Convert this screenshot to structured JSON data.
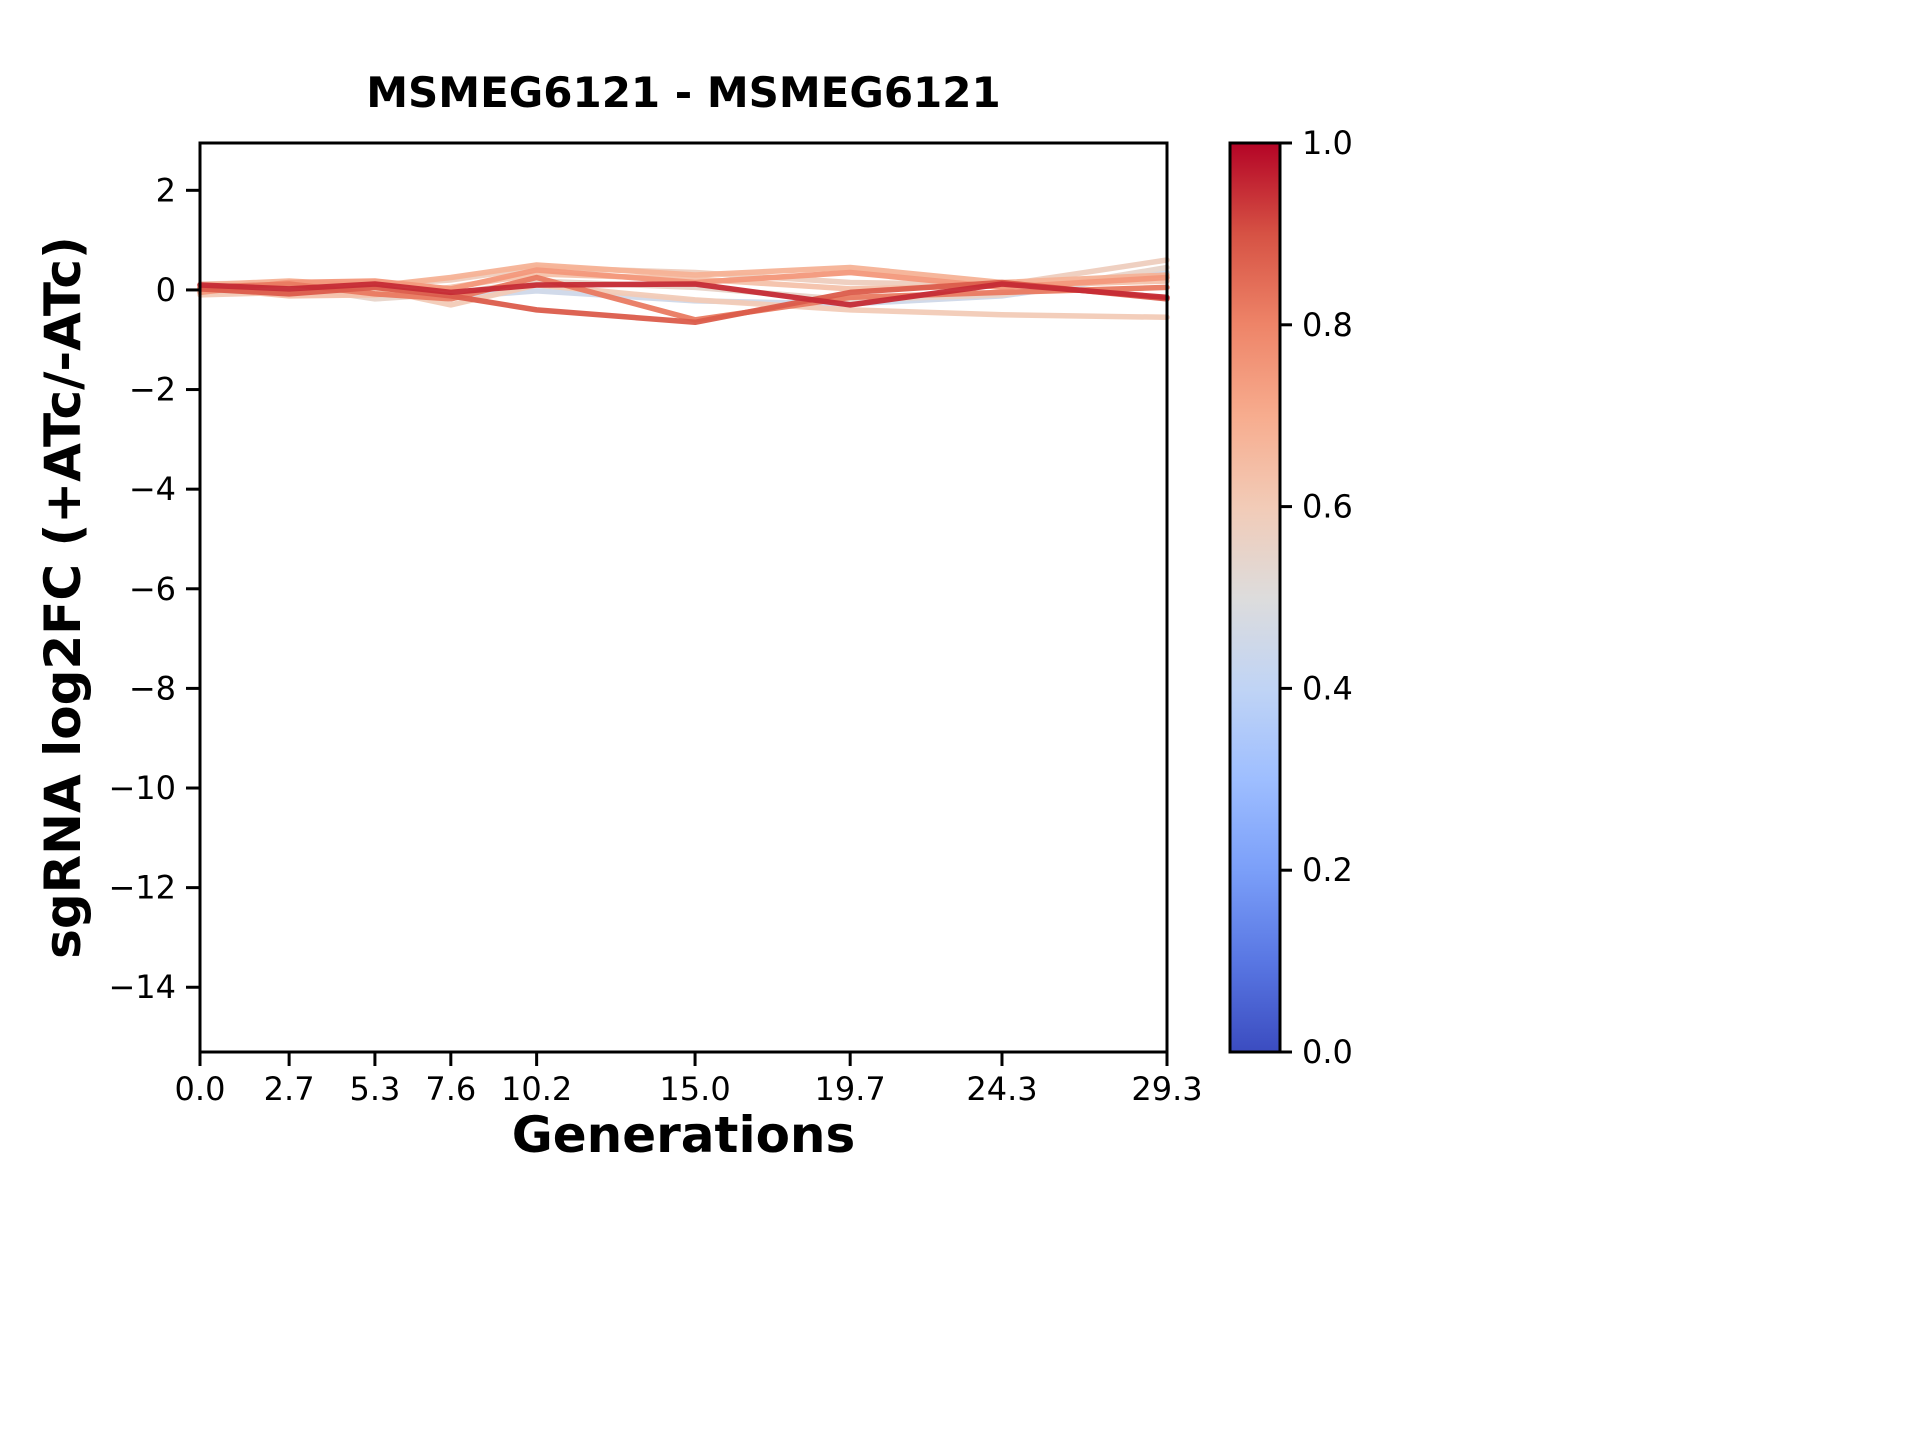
{
  "figure": {
    "background": "#ffffff",
    "plot_background": "#ffffff",
    "spine_color": "#000000"
  },
  "chart_data": {
    "type": "line",
    "title": "MSMEG6121 - MSMEG6121",
    "xlabel": "Generations",
    "ylabel": "sgRNA log2FC (+ATc/-ATc)",
    "xlim": [
      0,
      29.3
    ],
    "ylim": [
      -15.3,
      2.95
    ],
    "grid": false,
    "x": [
      0.0,
      2.7,
      5.3,
      7.6,
      10.2,
      15.0,
      19.7,
      24.3,
      29.3
    ],
    "x_tick_labels": [
      "0.0",
      "2.7",
      "5.3",
      "7.6",
      "10.2",
      "15.0",
      "19.7",
      "24.3",
      "29.3"
    ],
    "y_tick_values": [
      2,
      0,
      -2,
      -4,
      -6,
      -8,
      -10,
      -12,
      -14
    ],
    "y_tick_labels": [
      "2",
      "0",
      "−2",
      "−4",
      "−6",
      "−8",
      "−10",
      "−12",
      "−14"
    ],
    "series": [
      {
        "color_value": 0.45,
        "values": [
          -0.05,
          0.0,
          0.05,
          -0.15,
          -0.02,
          -0.22,
          -0.28,
          -0.12,
          0.35
        ]
      },
      {
        "color_value": 0.55,
        "values": [
          0.0,
          0.08,
          -0.18,
          -0.08,
          0.18,
          0.05,
          -0.2,
          -0.1,
          0.45
        ]
      },
      {
        "color_value": 0.58,
        "values": [
          0.12,
          0.15,
          0.1,
          0.2,
          0.45,
          0.35,
          0.15,
          0.1,
          0.6
        ]
      },
      {
        "color_value": 0.6,
        "values": [
          -0.1,
          -0.05,
          0.02,
          -0.3,
          0.1,
          -0.2,
          -0.4,
          -0.5,
          -0.55
        ]
      },
      {
        "color_value": 0.63,
        "values": [
          0.05,
          -0.12,
          -0.1,
          0.05,
          0.32,
          0.22,
          0.02,
          0.08,
          0.18
        ]
      },
      {
        "color_value": 0.68,
        "values": [
          0.1,
          0.18,
          0.08,
          0.25,
          0.5,
          0.3,
          0.45,
          0.15,
          0.3
        ]
      },
      {
        "color_value": 0.75,
        "values": [
          -0.05,
          0.15,
          0.18,
          0.02,
          0.4,
          0.15,
          0.35,
          0.05,
          0.25
        ]
      },
      {
        "color_value": 0.82,
        "values": [
          0.05,
          0.12,
          -0.08,
          -0.18,
          0.25,
          -0.6,
          -0.15,
          -0.05,
          0.05
        ]
      },
      {
        "color_value": 0.88,
        "values": [
          0.02,
          -0.08,
          0.05,
          -0.12,
          -0.4,
          -0.65,
          -0.05,
          0.15,
          -0.18
        ]
      },
      {
        "color_value": 0.95,
        "values": [
          0.1,
          0.02,
          0.12,
          -0.05,
          0.1,
          0.12,
          -0.3,
          0.12,
          -0.15
        ]
      }
    ],
    "colorbar": {
      "min": 0.0,
      "max": 1.0,
      "tick_values": [
        1.0,
        0.8,
        0.6,
        0.4,
        0.2,
        0.0
      ],
      "tick_labels": [
        "1.0",
        "0.8",
        "0.6",
        "0.4",
        "0.2",
        "0.0"
      ]
    },
    "colormap": {
      "name": "coolwarm",
      "stops": [
        [
          0.0,
          "#3b4cc0"
        ],
        [
          0.1,
          "#5977e3"
        ],
        [
          0.2,
          "#7b9ff9"
        ],
        [
          0.3,
          "#9ebeff"
        ],
        [
          0.4,
          "#c0d4f5"
        ],
        [
          0.5,
          "#dddcdc"
        ],
        [
          0.6,
          "#f2cbb7"
        ],
        [
          0.7,
          "#f7ac8e"
        ],
        [
          0.8,
          "#ee8468"
        ],
        [
          0.9,
          "#d65244"
        ],
        [
          1.0,
          "#b40426"
        ]
      ]
    }
  }
}
